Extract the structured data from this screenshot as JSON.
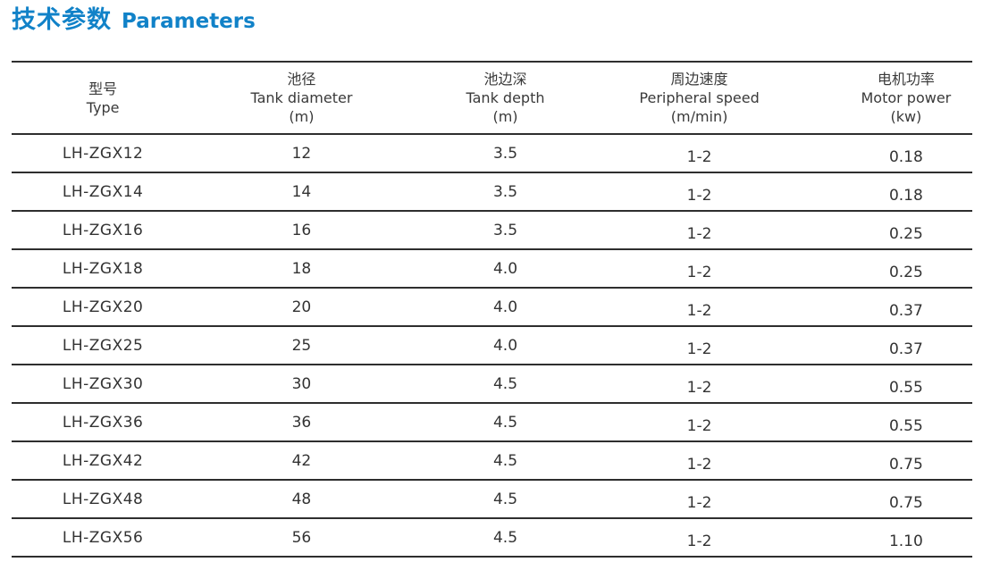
{
  "title": {
    "zh": "技术参数",
    "en": "Parameters"
  },
  "colors": {
    "accent": "#1182c8",
    "line": "#2e2e2e",
    "text": "#333333"
  },
  "table": {
    "columns": [
      {
        "zh": "型号",
        "en": "Type",
        "unit": ""
      },
      {
        "zh": "池径",
        "en": "Tank diameter",
        "unit": "(m)"
      },
      {
        "zh": "池边深",
        "en": "Tank depth",
        "unit": "(m)"
      },
      {
        "zh": "周边速度",
        "en": "Peripheral speed",
        "unit": "(m/min)"
      },
      {
        "zh": "电机功率",
        "en": "Motor power",
        "unit": "(kw)"
      }
    ],
    "rows": [
      [
        "LH-ZGX12",
        "12",
        "3.5",
        "1-2",
        "0.18"
      ],
      [
        "LH-ZGX14",
        "14",
        "3.5",
        "1-2",
        "0.18"
      ],
      [
        "LH-ZGX16",
        "16",
        "3.5",
        "1-2",
        "0.25"
      ],
      [
        "LH-ZGX18",
        "18",
        "4.0",
        "1-2",
        "0.25"
      ],
      [
        "LH-ZGX20",
        "20",
        "4.0",
        "1-2",
        "0.37"
      ],
      [
        "LH-ZGX25",
        "25",
        "4.0",
        "1-2",
        "0.37"
      ],
      [
        "LH-ZGX30",
        "30",
        "4.5",
        "1-2",
        "0.55"
      ],
      [
        "LH-ZGX36",
        "36",
        "4.5",
        "1-2",
        "0.55"
      ],
      [
        "LH-ZGX42",
        "42",
        "4.5",
        "1-2",
        "0.75"
      ],
      [
        "LH-ZGX48",
        "48",
        "4.5",
        "1-2",
        "0.75"
      ],
      [
        "LH-ZGX56",
        "56",
        "4.5",
        "1-2",
        "1.10"
      ]
    ]
  }
}
